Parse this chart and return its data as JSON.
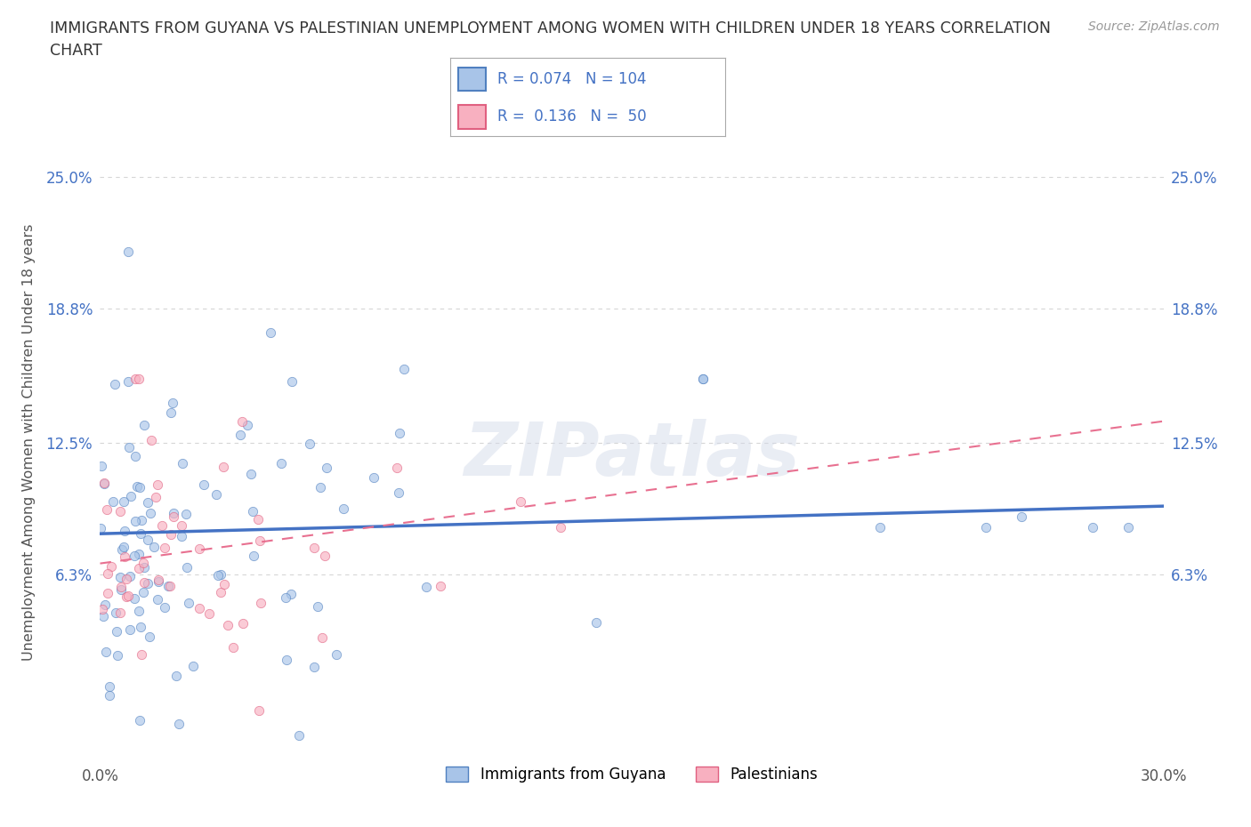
{
  "title_line1": "IMMIGRANTS FROM GUYANA VS PALESTINIAN UNEMPLOYMENT AMONG WOMEN WITH CHILDREN UNDER 18 YEARS CORRELATION",
  "title_line2": "CHART",
  "source": "Source: ZipAtlas.com",
  "ylabel": "Unemployment Among Women with Children Under 18 years",
  "xlim": [
    0.0,
    0.3
  ],
  "ylim": [
    -0.025,
    0.275
  ],
  "xtick_positions": [
    0.0,
    0.3
  ],
  "xticklabels": [
    "0.0%",
    "30.0%"
  ],
  "ytick_positions": [
    0.063,
    0.125,
    0.188,
    0.25
  ],
  "yticklabels": [
    "6.3%",
    "12.5%",
    "18.8%",
    "25.0%"
  ],
  "color_guyana_fill": "#a8c4e8",
  "color_guyana_edge": "#5080c0",
  "color_pal_fill": "#f8b0c0",
  "color_pal_edge": "#e06080",
  "line_color_guyana": "#4472c4",
  "line_color_pal": "#e87090",
  "R_guyana": 0.074,
  "N_guyana": 104,
  "R_pal": 0.136,
  "N_pal": 50,
  "legend_labels": [
    "Immigrants from Guyana",
    "Palestinians"
  ],
  "watermark": "ZIPatlas",
  "bg_color": "#ffffff",
  "grid_color": "#cccccc",
  "title_color": "#333333",
  "axis_label_color": "#555555",
  "tick_color": "#4472c4",
  "source_color": "#999999",
  "scatter_size": 55,
  "scatter_alpha": 0.65
}
